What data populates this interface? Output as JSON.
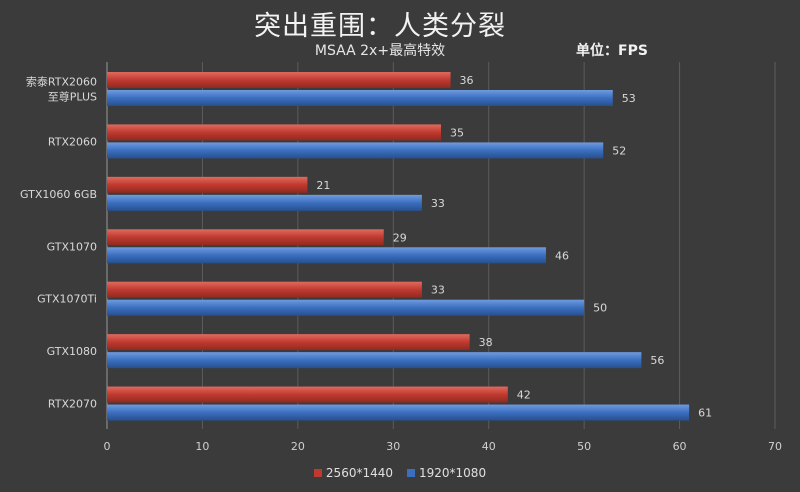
{
  "chart_data": {
    "type": "bar",
    "orientation": "horizontal",
    "title": "突出重围：人类分裂",
    "subtitle": "MSAA 2x+最高特效",
    "unit": "单位：FPS",
    "categories": [
      [
        "索泰RTX2060",
        "至尊PLUS"
      ],
      [
        "RTX2060"
      ],
      [
        "GTX1060 6GB"
      ],
      [
        "GTX1070"
      ],
      [
        "GTX1070Ti"
      ],
      [
        "GTX1080"
      ],
      [
        "RTX2070"
      ]
    ],
    "series": [
      {
        "name": "2560*1440",
        "color": "#c0392f",
        "values": [
          36,
          35,
          21,
          29,
          33,
          38,
          42
        ]
      },
      {
        "name": "1920*1080",
        "color": "#3a6fbf",
        "values": [
          53,
          52,
          33,
          46,
          50,
          56,
          61
        ]
      }
    ],
    "xlim": [
      0,
      70
    ],
    "xticks": [
      0,
      10,
      20,
      30,
      40,
      50,
      60,
      70
    ],
    "grid": true,
    "legend_position": "bottom"
  }
}
